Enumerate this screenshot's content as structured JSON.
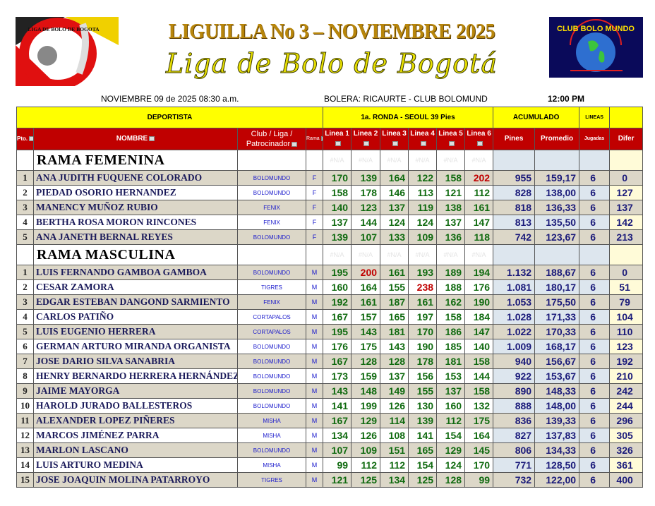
{
  "header": {
    "title": "LIGUILLA No 3 – NOVIEMBRE 2025",
    "subtitle": "Liga de Bolo de Bogotá",
    "left_logo_text": "LIGA DE BOLO DE BOGOTA",
    "right_logo_text": "CLUB BOLO MUNDO",
    "date": "NOVIEMBRE 09 de  2025   08:30 a.m.",
    "venue": "BOLERA: RICAURTE - CLUB BOLOMUND",
    "time": "12:00 PM"
  },
  "table": {
    "group_headers": {
      "deportista": "DEPORTISTA",
      "ronda": "1a. RONDA - SEOUL 39 Pies",
      "acumulado": "ACUMULADO",
      "lineas": "LINEAS"
    },
    "columns": {
      "pto": "Pto.",
      "nombre": "NOMBRE",
      "club": "Club / Liga / Patrocinador",
      "rama": "Rama",
      "lineas": [
        "Linea 1",
        "Linea 2",
        "Linea 3",
        "Linea 4",
        "Linea 5",
        "Linea 6"
      ],
      "pines": "Pines",
      "promedio": "Promedio",
      "jugadas": "Jugadas",
      "difer": "Difer"
    },
    "placeholder": "#N/A",
    "colors": {
      "header_yellow": "#ffff00",
      "header_red": "#c00000",
      "score_green": "#0f6a0f",
      "score_high": "#c00000"
    },
    "sections": [
      {
        "title": "RAMA FEMENINA",
        "rows": [
          {
            "pto": "1",
            "nombre": "ANA JUDITH FUQUENE COLORADO",
            "club": "BOLOMUNDO",
            "rama": "F",
            "scores": [
              170,
              139,
              164,
              122,
              158,
              202
            ],
            "pines": "955",
            "promedio": "159,17",
            "jugadas": "6",
            "difer": "0"
          },
          {
            "pto": "2",
            "nombre": "PIEDAD OSORIO HERNANDEZ",
            "club": "BOLOMUNDO",
            "rama": "F",
            "scores": [
              158,
              178,
              146,
              113,
              121,
              112
            ],
            "pines": "828",
            "promedio": "138,00",
            "jugadas": "6",
            "difer": "127"
          },
          {
            "pto": "3",
            "nombre": "MANENCY MUÑOZ RUBIO",
            "club": "FENIX",
            "rama": "F",
            "scores": [
              140,
              123,
              137,
              119,
              138,
              161
            ],
            "pines": "818",
            "promedio": "136,33",
            "jugadas": "6",
            "difer": "137"
          },
          {
            "pto": "4",
            "nombre": "BERTHA ROSA MORON RINCONES",
            "club": "FENIX",
            "rama": "F",
            "scores": [
              137,
              144,
              124,
              124,
              137,
              147
            ],
            "pines": "813",
            "promedio": "135,50",
            "jugadas": "6",
            "difer": "142"
          },
          {
            "pto": "5",
            "nombre": "ANA JANETH BERNAL REYES",
            "club": "BOLOMUNDO",
            "rama": "F",
            "scores": [
              139,
              107,
              133,
              109,
              136,
              118
            ],
            "pines": "742",
            "promedio": "123,67",
            "jugadas": "6",
            "difer": "213"
          }
        ]
      },
      {
        "title": "RAMA MASCULINA",
        "rows": [
          {
            "pto": "1",
            "nombre": "LUIS FERNANDO GAMBOA GAMBOA",
            "club": "BOLOMUNDO",
            "rama": "M",
            "scores": [
              195,
              200,
              161,
              193,
              189,
              194
            ],
            "pines": "1.132",
            "promedio": "188,67",
            "jugadas": "6",
            "difer": "0"
          },
          {
            "pto": "2",
            "nombre": "CESAR ZAMORA",
            "club": "TIGRES",
            "rama": "M",
            "scores": [
              160,
              164,
              155,
              238,
              188,
              176
            ],
            "pines": "1.081",
            "promedio": "180,17",
            "jugadas": "6",
            "difer": "51"
          },
          {
            "pto": "3",
            "nombre": "EDGAR ESTEBAN DANGOND SARMIENTO",
            "club": "FENIX",
            "rama": "M",
            "scores": [
              192,
              161,
              187,
              161,
              162,
              190
            ],
            "pines": "1.053",
            "promedio": "175,50",
            "jugadas": "6",
            "difer": "79"
          },
          {
            "pto": "4",
            "nombre": "CARLOS PATIÑO",
            "club": "CORTAPALOS",
            "rama": "M",
            "scores": [
              167,
              157,
              165,
              197,
              158,
              184
            ],
            "pines": "1.028",
            "promedio": "171,33",
            "jugadas": "6",
            "difer": "104"
          },
          {
            "pto": "5",
            "nombre": "LUIS EUGENIO HERRERA",
            "club": "CORTAPALOS",
            "rama": "M",
            "scores": [
              195,
              143,
              181,
              170,
              186,
              147
            ],
            "pines": "1.022",
            "promedio": "170,33",
            "jugadas": "6",
            "difer": "110"
          },
          {
            "pto": "6",
            "nombre": "GERMAN ARTURO MIRANDA ORGANISTA",
            "club": "BOLOMUNDO",
            "rama": "M",
            "scores": [
              176,
              175,
              143,
              190,
              185,
              140
            ],
            "pines": "1.009",
            "promedio": "168,17",
            "jugadas": "6",
            "difer": "123"
          },
          {
            "pto": "7",
            "nombre": "JOSE DARIO SILVA SANABRIA",
            "club": "BOLOMUNDO",
            "rama": "M",
            "scores": [
              167,
              128,
              128,
              178,
              181,
              158
            ],
            "pines": "940",
            "promedio": "156,67",
            "jugadas": "6",
            "difer": "192"
          },
          {
            "pto": "8",
            "nombre": "HENRY BERNARDO HERRERA HERNÁNDEZ",
            "club": "BOLOMUNDO",
            "rama": "M",
            "scores": [
              173,
              159,
              137,
              156,
              153,
              144
            ],
            "pines": "922",
            "promedio": "153,67",
            "jugadas": "6",
            "difer": "210"
          },
          {
            "pto": "9",
            "nombre": "JAIME MAYORGA",
            "club": "BOLOMUNDO",
            "rama": "M",
            "scores": [
              143,
              148,
              149,
              155,
              137,
              158
            ],
            "pines": "890",
            "promedio": "148,33",
            "jugadas": "6",
            "difer": "242"
          },
          {
            "pto": "10",
            "nombre": "HAROLD JURADO BALLESTEROS",
            "club": "BOLOMUNDO",
            "rama": "M",
            "scores": [
              141,
              199,
              126,
              130,
              160,
              132
            ],
            "pines": "888",
            "promedio": "148,00",
            "jugadas": "6",
            "difer": "244"
          },
          {
            "pto": "11",
            "nombre": "ALEXANDER LOPEZ PIÑERES",
            "club": "MISHA",
            "rama": "M",
            "scores": [
              167,
              129,
              114,
              139,
              112,
              175
            ],
            "pines": "836",
            "promedio": "139,33",
            "jugadas": "6",
            "difer": "296"
          },
          {
            "pto": "12",
            "nombre": "MARCOS JIMÉNEZ PARRA",
            "club": "MISHA",
            "rama": "M",
            "scores": [
              134,
              126,
              108,
              141,
              154,
              164
            ],
            "pines": "827",
            "promedio": "137,83",
            "jugadas": "6",
            "difer": "305"
          },
          {
            "pto": "13",
            "nombre": "MARLON LASCANO",
            "club": "BOLOMUNDO",
            "rama": "M",
            "scores": [
              107,
              109,
              151,
              165,
              129,
              145
            ],
            "pines": "806",
            "promedio": "134,33",
            "jugadas": "6",
            "difer": "326"
          },
          {
            "pto": "14",
            "nombre": "LUIS ARTURO MEDINA",
            "club": "MISHA",
            "rama": "M",
            "scores": [
              99,
              112,
              112,
              154,
              124,
              170
            ],
            "pines": "771",
            "promedio": "128,50",
            "jugadas": "6",
            "difer": "361"
          },
          {
            "pto": "15",
            "nombre": "JOSE JOAQUIN MOLINA PATARROYO",
            "club": "TIGRES",
            "rama": "M",
            "scores": [
              121,
              125,
              134,
              125,
              128,
              99
            ],
            "pines": "732",
            "promedio": "122,00",
            "jugadas": "6",
            "difer": "400"
          }
        ]
      }
    ]
  }
}
